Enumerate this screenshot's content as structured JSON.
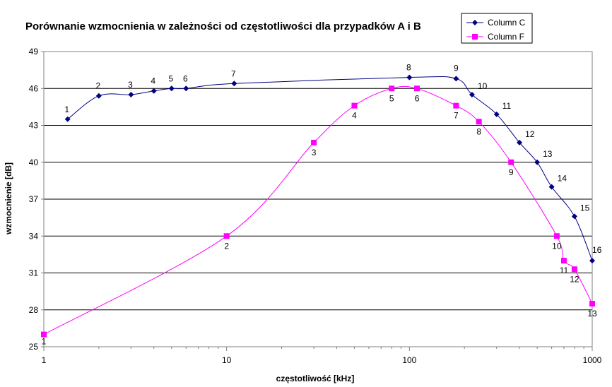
{
  "chart_data": {
    "type": "line",
    "title": "Porównanie wzmocnienia w zależności od częstotliwości dla przypadków A i B",
    "xlabel": "częstotliwość [kHz]",
    "ylabel": "wzmocnienie [dB]",
    "x_scale": "log",
    "xlim": [
      1,
      1000
    ],
    "ylim": [
      25,
      49
    ],
    "x_ticks": [
      1,
      10,
      100,
      1000
    ],
    "x_tick_labels": [
      "1",
      "10",
      "100",
      "1000"
    ],
    "y_ticks": [
      25,
      28,
      31,
      34,
      37,
      40,
      43,
      46,
      49
    ],
    "y_tick_labels": [
      "25",
      "28",
      "31",
      "34",
      "37",
      "40",
      "43",
      "46",
      "49"
    ],
    "grid": "horizontal",
    "legend_position": "top-right",
    "series": [
      {
        "name": "Column C",
        "color": "#000080",
        "marker": "diamond",
        "points": [
          {
            "x": 1.35,
            "y": 43.5,
            "label": "1"
          },
          {
            "x": 2,
            "y": 45.4,
            "label": "2"
          },
          {
            "x": 3,
            "y": 45.5,
            "label": "3"
          },
          {
            "x": 4,
            "y": 45.8,
            "label": "4"
          },
          {
            "x": 5,
            "y": 46.0,
            "label": "5"
          },
          {
            "x": 6,
            "y": 46.0,
            "label": "6"
          },
          {
            "x": 11,
            "y": 46.4,
            "label": "7"
          },
          {
            "x": 100,
            "y": 46.9,
            "label": "8"
          },
          {
            "x": 180,
            "y": 46.8,
            "label": "9"
          },
          {
            "x": 220,
            "y": 45.5,
            "label": "10"
          },
          {
            "x": 300,
            "y": 43.9,
            "label": "11"
          },
          {
            "x": 400,
            "y": 41.6,
            "label": "12"
          },
          {
            "x": 500,
            "y": 40.0,
            "label": "13"
          },
          {
            "x": 600,
            "y": 38.0,
            "label": "14"
          },
          {
            "x": 800,
            "y": 35.6,
            "label": "15"
          },
          {
            "x": 1000,
            "y": 32.0,
            "label": "16"
          }
        ]
      },
      {
        "name": "Column F",
        "color": "#ff00ff",
        "marker": "square",
        "points": [
          {
            "x": 1,
            "y": 26.0,
            "label": "1"
          },
          {
            "x": 10,
            "y": 34.0,
            "label": "2"
          },
          {
            "x": 30,
            "y": 41.6,
            "label": "3"
          },
          {
            "x": 50,
            "y": 44.6,
            "label": "4"
          },
          {
            "x": 80,
            "y": 46.0,
            "label": "5"
          },
          {
            "x": 110,
            "y": 46.0,
            "label": "6"
          },
          {
            "x": 180,
            "y": 44.6,
            "label": "7"
          },
          {
            "x": 240,
            "y": 43.3,
            "label": "8"
          },
          {
            "x": 360,
            "y": 40.0,
            "label": "9"
          },
          {
            "x": 640,
            "y": 34.0,
            "label": "10"
          },
          {
            "x": 700,
            "y": 32.0,
            "label": "11"
          },
          {
            "x": 800,
            "y": 31.3,
            "label": "12"
          },
          {
            "x": 1000,
            "y": 28.5,
            "label": "13"
          }
        ]
      }
    ]
  }
}
